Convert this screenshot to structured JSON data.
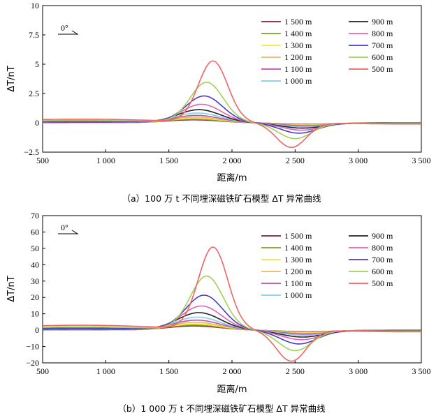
{
  "chart_data": [
    {
      "type": "line",
      "caption": "（a）100 万 t 不同埋深磁铁矿石模型 ΔT 异常曲线",
      "xlabel": "距离/m",
      "ylabel": "ΔT/nT",
      "xlim": [
        500,
        3500
      ],
      "ylim": [
        -2.5,
        10
      ],
      "xticks": [
        500,
        1000,
        1500,
        2000,
        2500,
        3000,
        3500
      ],
      "xtick_labels": [
        "500",
        "1 000",
        "1 500",
        "2 000",
        "2 500",
        "3 000",
        "3 500"
      ],
      "yticks": [
        -2.5,
        0,
        2.5,
        5,
        7.5,
        10
      ],
      "ytick_labels": [
        "−2.5",
        "0",
        "2.5",
        "5",
        "7.5",
        "10"
      ],
      "annotation": "0°",
      "legend_position": "top-right",
      "series": [
        {
          "name": "1 500 m",
          "color": "#8b1c3c",
          "peak": 0.25,
          "trough": -0.12,
          "peak_x": 1700,
          "trough_x": 2600,
          "width": 700
        },
        {
          "name": "1 400 m",
          "color": "#7f9e2a",
          "peak": 0.3,
          "trough": -0.14,
          "peak_x": 1700,
          "trough_x": 2600,
          "width": 690
        },
        {
          "name": "1 300 m",
          "color": "#f2ea3a",
          "peak": 0.38,
          "trough": -0.17,
          "peak_x": 1710,
          "trough_x": 2590,
          "width": 670
        },
        {
          "name": "1 200 m",
          "color": "#e8b86a",
          "peak": 0.48,
          "trough": -0.2,
          "peak_x": 1710,
          "trough_x": 2590,
          "width": 650
        },
        {
          "name": "1 100 m",
          "color": "#c04fb0",
          "peak": 0.62,
          "trough": -0.26,
          "peak_x": 1720,
          "trough_x": 2580,
          "width": 630
        },
        {
          "name": "1 000 m",
          "color": "#7fd0e8",
          "peak": 0.82,
          "trough": -0.34,
          "peak_x": 1730,
          "trough_x": 2570,
          "width": 600
        },
        {
          "name": "900 m",
          "color": "#222222",
          "peak": 1.1,
          "trough": -0.45,
          "peak_x": 1740,
          "trough_x": 2560,
          "width": 570
        },
        {
          "name": "800 m",
          "color": "#e262b6",
          "peak": 1.55,
          "trough": -0.62,
          "peak_x": 1760,
          "trough_x": 2550,
          "width": 530
        },
        {
          "name": "700 m",
          "color": "#4a3cc2",
          "peak": 2.25,
          "trough": -0.88,
          "peak_x": 1780,
          "trough_x": 2530,
          "width": 490
        },
        {
          "name": "600 m",
          "color": "#9fd356",
          "peak": 3.4,
          "trough": -1.35,
          "peak_x": 1800,
          "trough_x": 2500,
          "width": 440
        },
        {
          "name": "500 m",
          "color": "#f06464",
          "peak": 5.2,
          "trough": -2.1,
          "peak_x": 1850,
          "trough_x": 2470,
          "width": 390
        }
      ]
    },
    {
      "type": "line",
      "caption": "（b）1 000 万 t 不同埋深磁铁矿石模型 ΔT 异常曲线",
      "xlabel": "距离/m",
      "ylabel": "ΔT/nT",
      "xlim": [
        500,
        3500
      ],
      "ylim": [
        -20,
        70
      ],
      "xticks": [
        500,
        1000,
        1500,
        2000,
        2500,
        3000,
        3500
      ],
      "xtick_labels": [
        "500",
        "1 000",
        "1 500",
        "2 000",
        "2 500",
        "3 000",
        "3 500"
      ],
      "yticks": [
        -20,
        -10,
        0,
        10,
        20,
        30,
        40,
        50,
        60,
        70
      ],
      "ytick_labels": [
        "−20",
        "−10",
        "0",
        "10",
        "20",
        "30",
        "40",
        "50",
        "60",
        "70"
      ],
      "annotation": "0°",
      "legend_position": "top-right",
      "series": [
        {
          "name": "1 500 m",
          "color": "#8b1c3c",
          "peak": 2.5,
          "trough": -1.0,
          "peak_x": 1700,
          "trough_x": 2600,
          "width": 700
        },
        {
          "name": "1 400 m",
          "color": "#7f9e2a",
          "peak": 3.0,
          "trough": -1.2,
          "peak_x": 1700,
          "trough_x": 2600,
          "width": 690
        },
        {
          "name": "1 300 m",
          "color": "#f2ea3a",
          "peak": 3.7,
          "trough": -1.5,
          "peak_x": 1710,
          "trough_x": 2590,
          "width": 670
        },
        {
          "name": "1 200 m",
          "color": "#e8b86a",
          "peak": 4.7,
          "trough": -1.9,
          "peak_x": 1710,
          "trough_x": 2590,
          "width": 650
        },
        {
          "name": "1 100 m",
          "color": "#c04fb0",
          "peak": 6.0,
          "trough": -2.4,
          "peak_x": 1720,
          "trough_x": 2580,
          "width": 630
        },
        {
          "name": "1 000 m",
          "color": "#7fd0e8",
          "peak": 7.8,
          "trough": -3.1,
          "peak_x": 1730,
          "trough_x": 2570,
          "width": 600
        },
        {
          "name": "900 m",
          "color": "#222222",
          "peak": 10.5,
          "trough": -4.2,
          "peak_x": 1740,
          "trough_x": 2560,
          "width": 570
        },
        {
          "name": "800 m",
          "color": "#e262b6",
          "peak": 14.5,
          "trough": -5.8,
          "peak_x": 1760,
          "trough_x": 2550,
          "width": 530
        },
        {
          "name": "700 m",
          "color": "#4a3cc2",
          "peak": 21.0,
          "trough": -8.4,
          "peak_x": 1780,
          "trough_x": 2530,
          "width": 490
        },
        {
          "name": "600 m",
          "color": "#9fd356",
          "peak": 32.5,
          "trough": -12.5,
          "peak_x": 1800,
          "trough_x": 2500,
          "width": 440
        },
        {
          "name": "500 m",
          "color": "#f06464",
          "peak": 50.0,
          "trough": -19.0,
          "peak_x": 1850,
          "trough_x": 2470,
          "width": 390
        }
      ]
    }
  ]
}
